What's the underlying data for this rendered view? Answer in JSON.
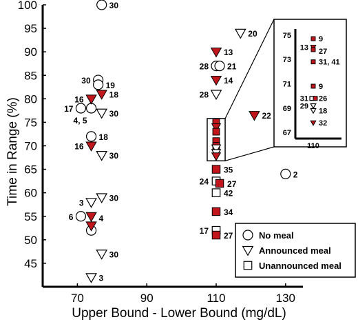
{
  "chart_data": {
    "type": "scatter",
    "xlabel": "Upper Bound - Lower Bound (mg/dL)",
    "ylabel": "Time in Range (%)",
    "xlim": [
      60,
      135
    ],
    "ylim": [
      40,
      100
    ],
    "xticks": [
      70,
      90,
      110,
      130
    ],
    "yticks": [
      45,
      50,
      55,
      60,
      65,
      70,
      75,
      80,
      85,
      90,
      95,
      100
    ],
    "grid": false,
    "legend_position": "bottom-right",
    "legend": [
      {
        "name": "No meal",
        "marker": "circle"
      },
      {
        "name": "Announced meal",
        "marker": "triangle-down"
      },
      {
        "name": "Unannounced meal",
        "marker": "square"
      }
    ],
    "colors": {
      "filled": "#c0161c",
      "stroke": "#000000"
    },
    "series": [
      {
        "name": "No meal",
        "marker": "circle",
        "points": [
          {
            "x": 77,
            "y": 100,
            "filled": false,
            "label": "30"
          },
          {
            "x": 76,
            "y": 84,
            "filled": false,
            "label": "30"
          },
          {
            "x": 76,
            "y": 83,
            "filled": false,
            "label": "19"
          },
          {
            "x": 71,
            "y": 78,
            "filled": false,
            "label": "17"
          },
          {
            "x": 74,
            "y": 78,
            "filled": false,
            "label": "4, 5"
          },
          {
            "x": 74,
            "y": 72,
            "filled": false,
            "label": "18"
          },
          {
            "x": 71,
            "y": 55,
            "filled": false,
            "label": "6"
          },
          {
            "x": 74,
            "y": 52,
            "filled": false,
            "label": ""
          },
          {
            "x": 110,
            "y": 87,
            "filled": false,
            "label": "28"
          },
          {
            "x": 111,
            "y": 87,
            "filled": false,
            "label": "21"
          },
          {
            "x": 130,
            "y": 64,
            "filled": false,
            "label": "2"
          }
        ]
      },
      {
        "name": "Announced meal",
        "marker": "triangle-down",
        "points": [
          {
            "x": 77,
            "y": 81,
            "filled": true,
            "label": "18"
          },
          {
            "x": 74,
            "y": 80,
            "filled": true,
            "label": "16"
          },
          {
            "x": 77,
            "y": 77,
            "filled": false,
            "label": "30"
          },
          {
            "x": 74,
            "y": 70,
            "filled": true,
            "label": "16"
          },
          {
            "x": 77,
            "y": 68,
            "filled": false,
            "label": "30"
          },
          {
            "x": 77,
            "y": 59,
            "filled": false,
            "label": "30"
          },
          {
            "x": 74,
            "y": 58,
            "filled": false,
            "label": "3"
          },
          {
            "x": 74,
            "y": 55,
            "filled": true,
            "label": "4"
          },
          {
            "x": 74,
            "y": 53,
            "filled": true,
            "label": ""
          },
          {
            "x": 77,
            "y": 47,
            "filled": false,
            "label": "30"
          },
          {
            "x": 74,
            "y": 42,
            "filled": false,
            "label": "3"
          },
          {
            "x": 117,
            "y": 94,
            "filled": false,
            "label": "20"
          },
          {
            "x": 110,
            "y": 90,
            "filled": true,
            "label": "13"
          },
          {
            "x": 110,
            "y": 84,
            "filled": true,
            "label": "14"
          },
          {
            "x": 110,
            "y": 81,
            "filled": false,
            "label": "28"
          },
          {
            "x": 121,
            "y": 76.5,
            "filled": true,
            "label": "22"
          }
        ]
      },
      {
        "name": "Unannounced meal",
        "marker": "square",
        "points": [
          {
            "x": 110,
            "y": 65,
            "filled": true,
            "label": "35"
          },
          {
            "x": 110,
            "y": 62.5,
            "filled": false,
            "label": "24"
          },
          {
            "x": 111,
            "y": 62,
            "filled": true,
            "label": "27"
          },
          {
            "x": 110,
            "y": 60,
            "filled": false,
            "label": "42"
          },
          {
            "x": 110,
            "y": 56,
            "filled": true,
            "label": "34"
          },
          {
            "x": 110,
            "y": 52,
            "filled": false,
            "label": "17"
          },
          {
            "x": 110,
            "y": 51,
            "filled": true,
            "label": "27"
          }
        ]
      }
    ],
    "cluster": {
      "markers": [
        {
          "x": 110,
          "y": 75,
          "shape": "square",
          "filled": true
        },
        {
          "x": 110,
          "y": 74,
          "shape": "triangle-down",
          "filled": true
        },
        {
          "x": 110,
          "y": 73,
          "shape": "square",
          "filled": true
        },
        {
          "x": 110,
          "y": 71,
          "shape": "square",
          "filled": true
        },
        {
          "x": 110,
          "y": 70,
          "shape": "square",
          "filled": true
        },
        {
          "x": 110,
          "y": 69.5,
          "shape": "triangle-down",
          "filled": false
        },
        {
          "x": 110,
          "y": 68.5,
          "shape": "triangle-down",
          "filled": false
        },
        {
          "x": 110,
          "y": 67.8,
          "shape": "triangle-down",
          "filled": true
        }
      ]
    },
    "inset": {
      "xlabel": "110",
      "yticks": [
        67,
        69,
        71,
        73,
        75
      ],
      "ylim": [
        66.5,
        75.5
      ],
      "zoom_x": [
        109,
        111
      ],
      "zoom_y": [
        66.8,
        75.8
      ],
      "points": [
        {
          "y": 74.7,
          "shape": "square",
          "filled": true,
          "label": "9"
        },
        {
          "y": 74.0,
          "shape": "triangle-down",
          "filled": true,
          "label": "13"
        },
        {
          "y": 73.8,
          "shape": "square",
          "filled": true,
          "label": "27"
        },
        {
          "y": 72.8,
          "shape": "square",
          "filled": true,
          "label": "31, 41"
        },
        {
          "y": 70.8,
          "shape": "square",
          "filled": true,
          "label": "9"
        },
        {
          "y": 69.8,
          "shape": "square",
          "filled": false,
          "label": "31"
        },
        {
          "y": 69.8,
          "shape": "square",
          "filled": true,
          "label": "26"
        },
        {
          "y": 69.2,
          "shape": "triangle-down",
          "filled": false,
          "label": "29"
        },
        {
          "y": 68.8,
          "shape": "triangle-down",
          "filled": false,
          "label": "18"
        },
        {
          "y": 67.8,
          "shape": "triangle-down",
          "filled": true,
          "label": "32"
        }
      ]
    }
  }
}
